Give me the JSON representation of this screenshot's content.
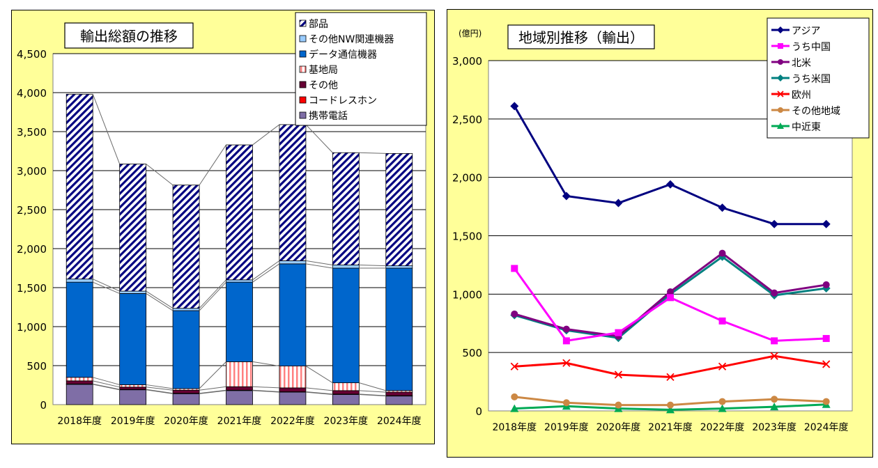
{
  "chart_data": [
    {
      "type": "bar",
      "stacked": true,
      "title": "輸出総額の推移",
      "categories": [
        "2018年度",
        "2019年度",
        "2020年度",
        "2021年度",
        "2022年度",
        "2023年度",
        "2024年度"
      ],
      "ylim": [
        0,
        4500
      ],
      "yticks": [
        "0",
        "500",
        "1,000",
        "1,500",
        "2,000",
        "2,500",
        "3,000",
        "3,500",
        "4,000",
        "4,500"
      ],
      "grid": true,
      "legend_position": "top-right",
      "series": [
        {
          "name": "携帯電話",
          "color": "#7f6ea6",
          "pattern": "solid",
          "values": [
            260,
            190,
            140,
            180,
            160,
            130,
            110
          ]
        },
        {
          "name": "コードレスホン",
          "color": "#ff0000",
          "pattern": "solid",
          "values": [
            5,
            5,
            5,
            5,
            5,
            5,
            5
          ]
        },
        {
          "name": "その他",
          "color": "#660033",
          "pattern": "solid",
          "values": [
            40,
            30,
            40,
            45,
            50,
            45,
            45
          ]
        },
        {
          "name": "基地局",
          "color": "#ff8080",
          "pattern": "vstripe",
          "values": [
            45,
            30,
            20,
            320,
            280,
            100,
            20
          ]
        },
        {
          "name": "データ通信機器",
          "color": "#0066cc",
          "pattern": "solid",
          "values": [
            1220,
            1170,
            1000,
            1020,
            1310,
            1470,
            1570
          ]
        },
        {
          "name": "その他NW関連機器",
          "color": "#99ccff",
          "pattern": "solid",
          "values": [
            40,
            30,
            30,
            30,
            40,
            40,
            30
          ]
        },
        {
          "name": "部品",
          "color": "#000080",
          "pattern": "diag",
          "values": [
            2370,
            1630,
            1580,
            1730,
            1745,
            1440,
            1440
          ]
        }
      ]
    },
    {
      "type": "line",
      "title": "地域別推移（輸出）",
      "unit_label": "(億円)",
      "categories": [
        "2018年度",
        "2019年度",
        "2020年度",
        "2021年度",
        "2022年度",
        "2023年度",
        "2024年度"
      ],
      "ylim": [
        0,
        3000
      ],
      "yticks": [
        "0",
        "500",
        "1,000",
        "1,500",
        "2,000",
        "2,500",
        "3,000"
      ],
      "grid": true,
      "legend_position": "top-right",
      "series": [
        {
          "name": "アジア",
          "color": "#000080",
          "marker": "diamond",
          "values": [
            2610,
            1840,
            1780,
            1940,
            1740,
            1600,
            1600
          ]
        },
        {
          "name": "うち中国",
          "color": "#ff00ff",
          "marker": "square",
          "values": [
            1220,
            600,
            670,
            970,
            770,
            600,
            620
          ]
        },
        {
          "name": "北米",
          "color": "#800080",
          "marker": "circle",
          "values": [
            830,
            700,
            640,
            1020,
            1350,
            1010,
            1080
          ]
        },
        {
          "name": "うち米国",
          "color": "#008080",
          "marker": "diamond",
          "values": [
            820,
            690,
            625,
            1000,
            1320,
            990,
            1050
          ]
        },
        {
          "name": "欧州",
          "color": "#ff0000",
          "marker": "x",
          "values": [
            380,
            410,
            310,
            290,
            380,
            470,
            400
          ]
        },
        {
          "name": "その他地域",
          "color": "#cc8844",
          "marker": "circle",
          "values": [
            120,
            70,
            50,
            50,
            80,
            100,
            80
          ]
        },
        {
          "name": "中近東",
          "color": "#00aa55",
          "marker": "triangle",
          "values": [
            20,
            40,
            20,
            10,
            20,
            35,
            55
          ]
        }
      ]
    }
  ]
}
